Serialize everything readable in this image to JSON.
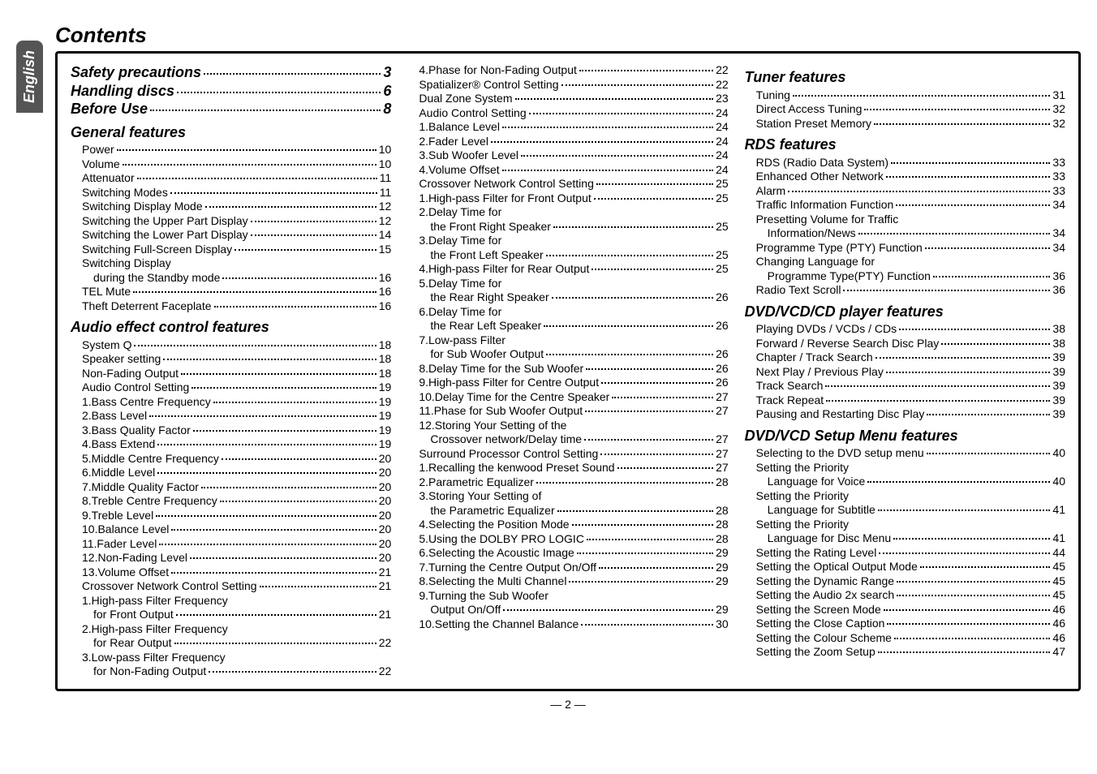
{
  "ui": {
    "side_tab": "English",
    "title": "Contents",
    "page_number": "— 2 —"
  },
  "columns": [
    {
      "blocks": [
        {
          "type": "head_page",
          "label": "Safety precautions",
          "page": "3"
        },
        {
          "type": "head_page",
          "label": "Handling discs",
          "page": "6"
        },
        {
          "type": "head_page",
          "label": "Before Use",
          "page": "8"
        },
        {
          "type": "head",
          "label": "General features"
        },
        {
          "type": "entry",
          "label": "Power",
          "page": "10",
          "level": 1
        },
        {
          "type": "entry",
          "label": "Volume",
          "page": "10",
          "level": 1
        },
        {
          "type": "entry",
          "label": "Attenuator",
          "page": "11",
          "level": 1
        },
        {
          "type": "entry",
          "label": "Switching Modes",
          "page": "11",
          "level": 1
        },
        {
          "type": "entry",
          "label": "Switching Display Mode",
          "page": "12",
          "level": 1
        },
        {
          "type": "entry",
          "label": "Switching the Upper Part Display",
          "page": "12",
          "level": 1
        },
        {
          "type": "entry",
          "label": "Switching the Lower Part Display",
          "page": "14",
          "level": 1
        },
        {
          "type": "entry",
          "label": "Switching Full-Screen Display",
          "page": "15",
          "level": 1
        },
        {
          "type": "cont",
          "label": "Switching Display",
          "level": 1
        },
        {
          "type": "entry",
          "label": "during the Standby mode",
          "page": "16",
          "level": 2
        },
        {
          "type": "entry",
          "label": "TEL Mute",
          "page": "16",
          "level": 1
        },
        {
          "type": "entry",
          "label": "Theft Deterrent Faceplate",
          "page": "16",
          "level": 1
        },
        {
          "type": "head",
          "label": "Audio effect control features"
        },
        {
          "type": "entry",
          "label": "System Q",
          "page": "18",
          "level": 1
        },
        {
          "type": "entry",
          "label": "Speaker setting",
          "page": "18",
          "level": 1
        },
        {
          "type": "entry",
          "label": "Non-Fading Output",
          "page": "18",
          "level": 1
        },
        {
          "type": "entry",
          "label": "Audio Control Setting",
          "page": "19",
          "level": 1
        },
        {
          "type": "entry",
          "label": "1.Bass Centre Frequency",
          "page": "19",
          "level": 1
        },
        {
          "type": "entry",
          "label": "2.Bass Level",
          "page": "19",
          "level": 1
        },
        {
          "type": "entry",
          "label": "3.Bass Quality Factor",
          "page": "19",
          "level": 1
        },
        {
          "type": "entry",
          "label": "4.Bass Extend",
          "page": "19",
          "level": 1
        },
        {
          "type": "entry",
          "label": "5.Middle Centre Frequency",
          "page": "20",
          "level": 1
        },
        {
          "type": "entry",
          "label": "6.Middle Level",
          "page": "20",
          "level": 1
        },
        {
          "type": "entry",
          "label": "7.Middle Quality Factor",
          "page": "20",
          "level": 1
        },
        {
          "type": "entry",
          "label": "8.Treble Centre Frequency",
          "page": "20",
          "level": 1
        },
        {
          "type": "entry",
          "label": "9.Treble Level",
          "page": "20",
          "level": 1
        },
        {
          "type": "entry",
          "label": "10.Balance Level",
          "page": "20",
          "level": 1
        },
        {
          "type": "entry",
          "label": "11.Fader Level",
          "page": "20",
          "level": 1
        },
        {
          "type": "entry",
          "label": "12.Non-Fading Level",
          "page": "20",
          "level": 1
        },
        {
          "type": "entry",
          "label": "13.Volume Offset",
          "page": "21",
          "level": 1
        },
        {
          "type": "entry",
          "label": "Crossover Network Control Setting",
          "page": "21",
          "level": 1
        },
        {
          "type": "cont",
          "label": "1.High-pass Filter Frequency",
          "level": 1
        },
        {
          "type": "entry",
          "label": "for Front Output",
          "page": "21",
          "level": 2
        },
        {
          "type": "cont",
          "label": "2.High-pass Filter Frequency",
          "level": 1
        },
        {
          "type": "entry",
          "label": "for Rear Output",
          "page": "22",
          "level": 2
        },
        {
          "type": "cont",
          "label": "3.Low-pass Filter Frequency",
          "level": 1
        },
        {
          "type": "entry",
          "label": "for Non-Fading Output",
          "page": "22",
          "level": 2
        }
      ]
    },
    {
      "blocks": [
        {
          "type": "entry",
          "label": "4.Phase for Non-Fading Output",
          "page": "22",
          "level": 1
        },
        {
          "type": "entry",
          "label": "Spatializer® Control Setting",
          "page": "22",
          "level": 1
        },
        {
          "type": "entry",
          "label": "Dual Zone System",
          "page": "23",
          "level": 1
        },
        {
          "type": "entry",
          "label": "Audio Control Setting",
          "page": "24",
          "level": 1
        },
        {
          "type": "entry",
          "label": "1.Balance Level",
          "page": "24",
          "level": 1
        },
        {
          "type": "entry",
          "label": "2.Fader Level",
          "page": "24",
          "level": 1
        },
        {
          "type": "entry",
          "label": "3.Sub Woofer Level",
          "page": "24",
          "level": 1
        },
        {
          "type": "entry",
          "label": "4.Volume Offset",
          "page": "24",
          "level": 1
        },
        {
          "type": "entry",
          "label": "Crossover Network Control Setting",
          "page": "25",
          "level": 1
        },
        {
          "type": "entry",
          "label": "1.High-pass Filter for Front Output",
          "page": "25",
          "level": 1
        },
        {
          "type": "cont",
          "label": "2.Delay Time for",
          "level": 1
        },
        {
          "type": "entry",
          "label": "the Front Right Speaker",
          "page": "25",
          "level": 2
        },
        {
          "type": "cont",
          "label": "3.Delay Time for",
          "level": 1
        },
        {
          "type": "entry",
          "label": "the Front Left Speaker",
          "page": "25",
          "level": 2
        },
        {
          "type": "entry",
          "label": "4.High-pass Filter for Rear Output",
          "page": "25",
          "level": 1
        },
        {
          "type": "cont",
          "label": "5.Delay Time for",
          "level": 1
        },
        {
          "type": "entry",
          "label": "the Rear Right Speaker",
          "page": "26",
          "level": 2
        },
        {
          "type": "cont",
          "label": "6.Delay Time for",
          "level": 1
        },
        {
          "type": "entry",
          "label": "the Rear Left Speaker",
          "page": "26",
          "level": 2
        },
        {
          "type": "cont",
          "label": "7.Low-pass Filter",
          "level": 1
        },
        {
          "type": "entry",
          "label": "for Sub Woofer Output",
          "page": "26",
          "level": 2
        },
        {
          "type": "entry",
          "label": "8.Delay Time for the Sub Woofer",
          "page": "26",
          "level": 1
        },
        {
          "type": "entry",
          "label": "9.High-pass Filter for Centre Output",
          "page": "26",
          "level": 1
        },
        {
          "type": "entry",
          "label": "10.Delay Time for the Centre Speaker",
          "page": "27",
          "level": 1
        },
        {
          "type": "entry",
          "label": "11.Phase for Sub Woofer Output",
          "page": "27",
          "level": 1
        },
        {
          "type": "cont",
          "label": "12.Storing Your Setting of the",
          "level": 1
        },
        {
          "type": "entry",
          "label": "Crossover network/Delay time",
          "page": "27",
          "level": 2
        },
        {
          "type": "entry",
          "label": "Surround Processor Control Setting",
          "page": "27",
          "level": 1
        },
        {
          "type": "entry",
          "label": "1.Recalling the kenwood Preset Sound",
          "page": "27",
          "level": 1
        },
        {
          "type": "entry",
          "label": "2.Parametric Equalizer",
          "page": "28",
          "level": 1
        },
        {
          "type": "cont",
          "label": "3.Storing Your Setting of",
          "level": 1
        },
        {
          "type": "entry",
          "label": "the Parametric Equalizer",
          "page": "28",
          "level": 2
        },
        {
          "type": "entry",
          "label": "4.Selecting the Position Mode",
          "page": "28",
          "level": 1
        },
        {
          "type": "entry",
          "label": "5.Using the DOLBY PRO LOGIC",
          "page": "28",
          "level": 1
        },
        {
          "type": "entry",
          "label": "6.Selecting the Acoustic Image",
          "page": "29",
          "level": 1
        },
        {
          "type": "entry",
          "label": "7.Turning the Centre Output On/Off",
          "page": "29",
          "level": 1
        },
        {
          "type": "entry",
          "label": "8.Selecting the Multi Channel",
          "page": "29",
          "level": 1
        },
        {
          "type": "cont",
          "label": "9.Turning the Sub Woofer",
          "level": 1
        },
        {
          "type": "entry",
          "label": "Output On/Off",
          "page": "29",
          "level": 2
        },
        {
          "type": "entry",
          "label": "10.Setting the Channel Balance",
          "page": "30",
          "level": 1
        }
      ]
    },
    {
      "blocks": [
        {
          "type": "head",
          "label": "Tuner features"
        },
        {
          "type": "entry",
          "label": "Tuning",
          "page": "31",
          "level": 1
        },
        {
          "type": "entry",
          "label": "Direct Access Tuning",
          "page": "32",
          "level": 1
        },
        {
          "type": "entry",
          "label": "Station Preset Memory",
          "page": "32",
          "level": 1
        },
        {
          "type": "head",
          "label": "RDS features"
        },
        {
          "type": "entry",
          "label": "RDS (Radio Data System)",
          "page": "33",
          "level": 1
        },
        {
          "type": "entry",
          "label": "Enhanced Other Network",
          "page": "33",
          "level": 1
        },
        {
          "type": "entry",
          "label": "Alarm",
          "page": "33",
          "level": 1
        },
        {
          "type": "entry",
          "label": "Traffic Information Function",
          "page": "34",
          "level": 1
        },
        {
          "type": "cont",
          "label": "Presetting Volume for Traffic",
          "level": 1
        },
        {
          "type": "entry",
          "label": "Information/News",
          "page": "34",
          "level": 2
        },
        {
          "type": "entry",
          "label": "Programme Type (PTY) Function",
          "page": "34",
          "level": 1
        },
        {
          "type": "cont",
          "label": "Changing Language for",
          "level": 1
        },
        {
          "type": "entry",
          "label": "Programme Type(PTY) Function",
          "page": "36",
          "level": 2
        },
        {
          "type": "entry",
          "label": "Radio Text Scroll",
          "page": "36",
          "level": 1
        },
        {
          "type": "head",
          "label": "DVD/VCD/CD player features"
        },
        {
          "type": "entry",
          "label": "Playing DVDs / VCDs / CDs",
          "page": "38",
          "level": 1
        },
        {
          "type": "entry",
          "label": "Forward / Reverse Search Disc Play",
          "page": "38",
          "level": 1
        },
        {
          "type": "entry",
          "label": "Chapter / Track Search",
          "page": "39",
          "level": 1
        },
        {
          "type": "entry",
          "label": "Next Play / Previous Play",
          "page": "39",
          "level": 1
        },
        {
          "type": "entry",
          "label": "Track Search",
          "page": "39",
          "level": 1
        },
        {
          "type": "entry",
          "label": "Track Repeat",
          "page": "39",
          "level": 1
        },
        {
          "type": "entry",
          "label": "Pausing and Restarting Disc Play",
          "page": "39",
          "level": 1
        },
        {
          "type": "head",
          "label": "DVD/VCD Setup Menu features"
        },
        {
          "type": "entry",
          "label": "Selecting to the DVD setup menu",
          "page": "40",
          "level": 1
        },
        {
          "type": "cont",
          "label": "Setting the Priority",
          "level": 1
        },
        {
          "type": "entry",
          "label": "Language for Voice",
          "page": "40",
          "level": 2
        },
        {
          "type": "cont",
          "label": "Setting the Priority",
          "level": 1
        },
        {
          "type": "entry",
          "label": "Language for Subtitle",
          "page": "41",
          "level": 2
        },
        {
          "type": "cont",
          "label": "Setting the Priority",
          "level": 1
        },
        {
          "type": "entry",
          "label": "Language for Disc Menu",
          "page": "41",
          "level": 2
        },
        {
          "type": "entry",
          "label": "Setting the Rating Level",
          "page": "44",
          "level": 1
        },
        {
          "type": "entry",
          "label": "Setting the Optical Output Mode",
          "page": "45",
          "level": 1
        },
        {
          "type": "entry",
          "label": "Setting the Dynamic Range",
          "page": "45",
          "level": 1
        },
        {
          "type": "entry",
          "label": "Setting the Audio 2x search",
          "page": "45",
          "level": 1
        },
        {
          "type": "entry",
          "label": "Setting the Screen Mode",
          "page": "46",
          "level": 1
        },
        {
          "type": "entry",
          "label": "Setting the Close Caption",
          "page": "46",
          "level": 1
        },
        {
          "type": "entry",
          "label": "Setting the Colour Scheme",
          "page": "46",
          "level": 1
        },
        {
          "type": "entry",
          "label": "Setting the Zoom Setup",
          "page": "47",
          "level": 1
        }
      ]
    }
  ]
}
